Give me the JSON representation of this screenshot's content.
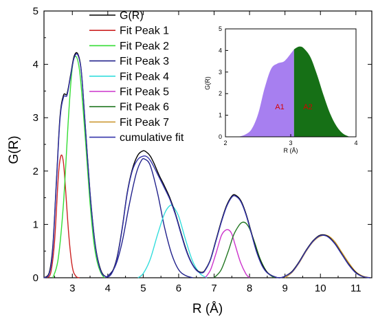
{
  "chart_data": [
    {
      "type": "line",
      "xlabel": "R (Å)",
      "ylabel": "G(R)",
      "xlim": [
        2.2,
        11.45
      ],
      "ylim": [
        0,
        5
      ],
      "xticks": [
        3,
        4,
        5,
        6,
        7,
        8,
        9,
        10,
        11
      ],
      "yticks": [
        0,
        1,
        2,
        3,
        4,
        5
      ],
      "legend_position": "top-center",
      "series": [
        {
          "name": "G(R)",
          "color": "#000000",
          "x": [
            2.2,
            2.35,
            2.45,
            2.55,
            2.65,
            2.75,
            2.85,
            2.95,
            3.05,
            3.15,
            3.25,
            3.35,
            3.5,
            3.65,
            3.8,
            3.95,
            4.1,
            4.25,
            4.4,
            4.55,
            4.7,
            4.85,
            5.0,
            5.1,
            5.2,
            5.3,
            5.45,
            5.6,
            5.75,
            5.9,
            6.05,
            6.2,
            6.35,
            6.5,
            6.65,
            6.75,
            6.9,
            7.05,
            7.2,
            7.35,
            7.5,
            7.6,
            7.75,
            7.9,
            8.05,
            8.2,
            8.35,
            8.5,
            8.7,
            8.85,
            9.0,
            9.2,
            9.4,
            9.6,
            9.8,
            10.0,
            10.2,
            10.4,
            10.6,
            10.8,
            11.0,
            11.2,
            11.4
          ],
          "y": [
            0.0,
            0.1,
            0.6,
            1.8,
            3.0,
            3.42,
            3.45,
            3.8,
            4.15,
            4.2,
            3.9,
            3.0,
            1.6,
            0.6,
            0.15,
            0.02,
            0.08,
            0.35,
            0.9,
            1.6,
            2.05,
            2.3,
            2.38,
            2.35,
            2.28,
            2.15,
            1.92,
            1.72,
            1.5,
            1.22,
            0.88,
            0.55,
            0.3,
            0.15,
            0.1,
            0.15,
            0.35,
            0.7,
            1.05,
            1.35,
            1.53,
            1.55,
            1.45,
            1.2,
            0.85,
            0.5,
            0.25,
            0.1,
            0.02,
            0.0,
            0.03,
            0.12,
            0.3,
            0.52,
            0.7,
            0.8,
            0.78,
            0.65,
            0.45,
            0.25,
            0.1,
            0.02,
            0.0
          ]
        },
        {
          "name": "Fit Peak 1",
          "color": "#cc2222",
          "x": [
            2.3,
            2.4,
            2.5,
            2.6,
            2.65,
            2.7,
            2.75,
            2.8,
            2.9,
            3.0,
            3.1,
            3.2
          ],
          "y": [
            0.0,
            0.12,
            0.7,
            1.85,
            2.2,
            2.3,
            2.15,
            1.75,
            0.8,
            0.2,
            0.03,
            0.0
          ]
        },
        {
          "name": "Fit Peak 2",
          "color": "#33dd33",
          "x": [
            2.45,
            2.6,
            2.75,
            2.9,
            3.0,
            3.1,
            3.2,
            3.3,
            3.4,
            3.5,
            3.6,
            3.7,
            3.8,
            3.9
          ],
          "y": [
            0.0,
            0.35,
            1.4,
            3.1,
            3.95,
            4.15,
            3.9,
            3.2,
            2.3,
            1.4,
            0.7,
            0.3,
            0.1,
            0.0
          ]
        },
        {
          "name": "Fit Peak 3",
          "color": "#22228c",
          "x": [
            3.95,
            4.2,
            4.4,
            4.6,
            4.8,
            4.95,
            5.05,
            5.2,
            5.4,
            5.6,
            5.8,
            6.0,
            6.2,
            6.4
          ],
          "y": [
            0.0,
            0.2,
            0.65,
            1.35,
            1.95,
            2.2,
            2.22,
            2.1,
            1.6,
            0.95,
            0.45,
            0.15,
            0.04,
            0.0
          ]
        },
        {
          "name": "Fit Peak 4",
          "color": "#33dddd",
          "x": [
            4.85,
            5.0,
            5.2,
            5.4,
            5.6,
            5.75,
            5.85,
            6.0,
            6.2,
            6.4,
            6.6,
            6.8
          ],
          "y": [
            0.0,
            0.08,
            0.35,
            0.8,
            1.2,
            1.35,
            1.33,
            1.15,
            0.7,
            0.3,
            0.08,
            0.0
          ]
        },
        {
          "name": "Fit Peak 5",
          "color": "#cc33cc",
          "x": [
            6.75,
            6.9,
            7.05,
            7.2,
            7.3,
            7.4,
            7.5,
            7.6,
            7.75,
            7.9,
            8.0
          ],
          "y": [
            0.0,
            0.15,
            0.45,
            0.78,
            0.88,
            0.9,
            0.82,
            0.6,
            0.28,
            0.07,
            0.0
          ]
        },
        {
          "name": "Fit Peak 6",
          "color": "#227722",
          "x": [
            7.0,
            7.2,
            7.4,
            7.55,
            7.7,
            7.8,
            7.9,
            8.0,
            8.15,
            8.3,
            8.5,
            8.7
          ],
          "y": [
            0.0,
            0.15,
            0.5,
            0.8,
            0.98,
            1.04,
            1.02,
            0.92,
            0.65,
            0.35,
            0.1,
            0.0
          ]
        },
        {
          "name": "Fit Peak 7",
          "color": "#cc9933",
          "x": [
            9.0,
            9.2,
            9.4,
            9.6,
            9.8,
            10.0,
            10.2,
            10.4,
            10.6,
            10.8,
            11.0,
            11.2,
            11.4
          ],
          "y": [
            0.0,
            0.1,
            0.28,
            0.5,
            0.68,
            0.78,
            0.79,
            0.68,
            0.48,
            0.28,
            0.11,
            0.03,
            0.0
          ]
        },
        {
          "name": "cumulative fit",
          "color": "#3333aa",
          "x": [
            2.2,
            2.35,
            2.45,
            2.55,
            2.65,
            2.75,
            2.85,
            2.95,
            3.05,
            3.15,
            3.25,
            3.35,
            3.5,
            3.65,
            3.8,
            3.95,
            4.1,
            4.25,
            4.4,
            4.55,
            4.7,
            4.85,
            5.0,
            5.1,
            5.2,
            5.3,
            5.45,
            5.6,
            5.75,
            5.9,
            6.05,
            6.2,
            6.35,
            6.5,
            6.65,
            6.75,
            6.9,
            7.05,
            7.2,
            7.35,
            7.5,
            7.6,
            7.75,
            7.9,
            8.05,
            8.2,
            8.35,
            8.5,
            8.7,
            8.85,
            9.0,
            9.2,
            9.4,
            9.6,
            9.8,
            10.0,
            10.2,
            10.4,
            10.6,
            10.8,
            11.0,
            11.2,
            11.4
          ],
          "y": [
            0.0,
            0.08,
            0.55,
            1.75,
            2.95,
            3.38,
            3.42,
            3.78,
            4.12,
            4.18,
            3.88,
            2.98,
            1.58,
            0.58,
            0.13,
            0.02,
            0.07,
            0.33,
            0.88,
            1.58,
            2.02,
            2.22,
            2.28,
            2.27,
            2.2,
            2.08,
            1.88,
            1.68,
            1.47,
            1.2,
            0.86,
            0.53,
            0.29,
            0.14,
            0.09,
            0.14,
            0.34,
            0.68,
            1.03,
            1.33,
            1.51,
            1.53,
            1.43,
            1.18,
            0.83,
            0.48,
            0.23,
            0.09,
            0.02,
            0.0,
            0.03,
            0.11,
            0.29,
            0.51,
            0.69,
            0.79,
            0.77,
            0.64,
            0.44,
            0.24,
            0.09,
            0.02,
            0.0
          ]
        }
      ]
    },
    {
      "type": "area",
      "xlabel": "R (Å)",
      "ylabel": "G(R)",
      "xlim": [
        2,
        4
      ],
      "ylim": [
        0,
        5
      ],
      "xticks": [
        2,
        3,
        4
      ],
      "yticks": [
        0,
        1,
        2,
        3,
        4,
        5
      ],
      "split_x": 3.05,
      "x": [
        2.2,
        2.3,
        2.4,
        2.5,
        2.6,
        2.7,
        2.8,
        2.9,
        3.0,
        3.05,
        3.1,
        3.15,
        3.2,
        3.3,
        3.4,
        3.5,
        3.6,
        3.7,
        3.8,
        3.9
      ],
      "y": [
        0.0,
        0.1,
        0.35,
        1.05,
        2.25,
        3.15,
        3.4,
        3.5,
        3.85,
        4.05,
        4.15,
        4.18,
        4.1,
        3.7,
        2.9,
        1.95,
        1.1,
        0.5,
        0.15,
        0.0
      ],
      "areas": [
        {
          "name": "A1",
          "color": "#a77ff0"
        },
        {
          "name": "A2",
          "color": "#167016"
        }
      ]
    }
  ]
}
